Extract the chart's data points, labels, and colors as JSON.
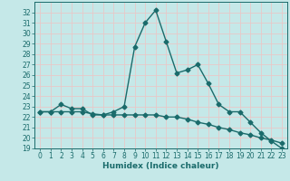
{
  "xlabel": "Humidex (Indice chaleur)",
  "ylabel": "",
  "bg_color": "#c5e8e8",
  "line_color": "#1a6b6b",
  "grid_color": "#e8c8c8",
  "xlim": [
    -0.5,
    23.5
  ],
  "ylim": [
    19,
    33
  ],
  "yticks": [
    19,
    20,
    21,
    22,
    23,
    24,
    25,
    26,
    27,
    28,
    29,
    30,
    31,
    32
  ],
  "xticks": [
    0,
    1,
    2,
    3,
    4,
    5,
    6,
    7,
    8,
    9,
    10,
    11,
    12,
    13,
    14,
    15,
    16,
    17,
    18,
    19,
    20,
    21,
    22,
    23
  ],
  "series1_x": [
    0,
    1,
    2,
    3,
    4,
    5,
    6,
    7,
    8,
    9,
    10,
    11,
    12,
    13,
    14,
    15,
    16,
    17,
    18,
    19,
    20,
    21,
    22,
    23
  ],
  "series1_y": [
    22.5,
    22.5,
    23.2,
    22.8,
    22.8,
    22.2,
    22.2,
    22.5,
    23.0,
    28.7,
    31.0,
    32.2,
    29.2,
    26.2,
    26.5,
    27.0,
    25.2,
    23.2,
    22.5,
    22.5,
    21.5,
    20.5,
    19.7,
    19.0
  ],
  "series2_x": [
    0,
    1,
    2,
    3,
    4,
    5,
    6,
    7,
    8,
    9,
    10,
    11,
    12,
    13,
    14,
    15,
    16,
    17,
    18,
    19,
    20,
    21,
    22,
    23
  ],
  "series2_y": [
    22.5,
    22.5,
    22.5,
    22.5,
    22.5,
    22.3,
    22.2,
    22.2,
    22.2,
    22.2,
    22.2,
    22.2,
    22.0,
    22.0,
    21.8,
    21.5,
    21.3,
    21.0,
    20.8,
    20.5,
    20.3,
    20.0,
    19.8,
    19.5
  ],
  "marker": "D",
  "markersize": 2.5,
  "linewidth": 1.0
}
